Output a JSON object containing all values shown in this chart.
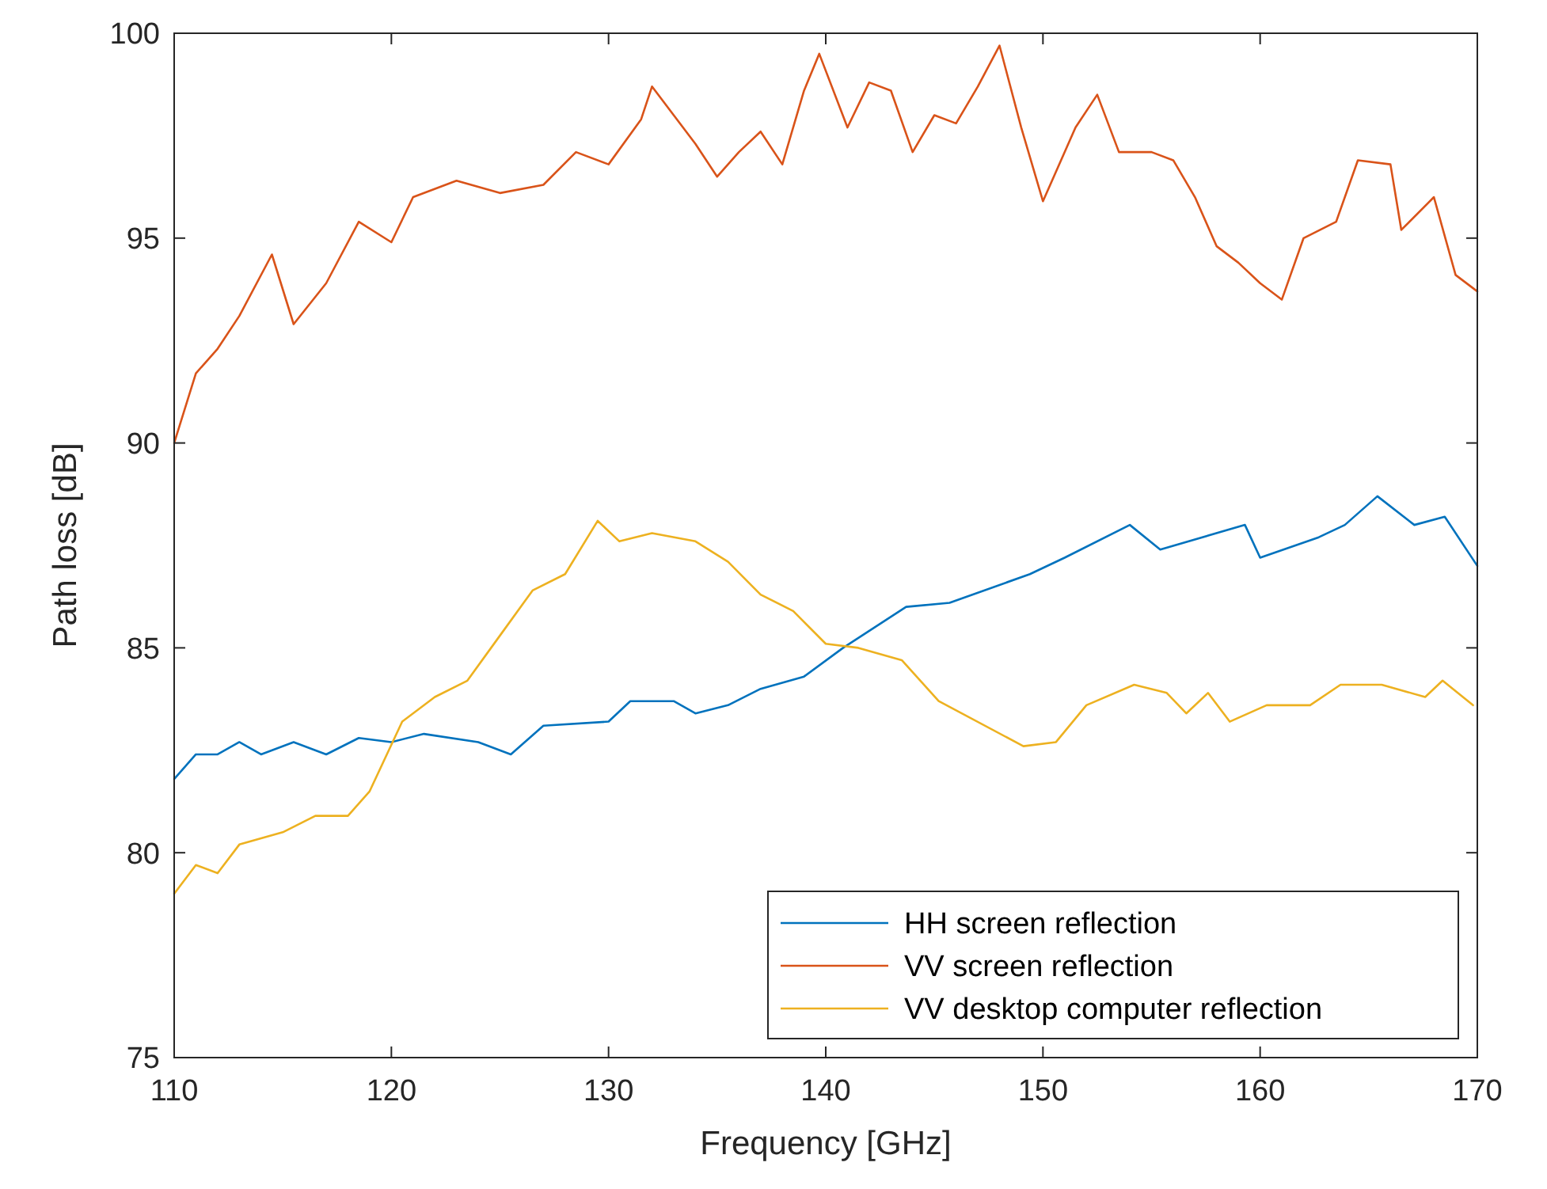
{
  "chart_data": {
    "type": "line",
    "xlabel": "Frequency [GHz]",
    "ylabel": "Path loss [dB]",
    "xlim": [
      110,
      170
    ],
    "ylim": [
      75,
      100
    ],
    "xticks": [
      110,
      120,
      130,
      140,
      150,
      160,
      170
    ],
    "yticks": [
      75,
      80,
      85,
      90,
      95,
      100
    ],
    "grid": false,
    "legend": "bottom right",
    "line_style": "solid",
    "marker": "none",
    "series": [
      {
        "name": "HH screen reflection",
        "color": "#0072bd",
        "x": [
          110,
          111,
          112,
          113,
          114,
          115.5,
          117,
          118.5,
          120,
          121.5,
          124,
          125.5,
          127,
          130,
          131,
          133,
          134,
          135.5,
          137,
          139,
          140.8,
          143.7,
          145.7,
          149.4,
          151,
          154,
          155.4,
          159.3,
          160,
          162.7,
          163.9,
          165.4,
          167.1,
          168.5,
          170
        ],
        "values": [
          81.8,
          82.4,
          82.4,
          82.7,
          82.4,
          82.7,
          82.4,
          82.8,
          82.7,
          82.9,
          82.7,
          82.4,
          83.1,
          83.2,
          83.7,
          83.7,
          83.4,
          83.6,
          84.0,
          84.3,
          85.0,
          86.0,
          86.1,
          86.8,
          87.2,
          88.0,
          87.4,
          88.0,
          87.2,
          87.7,
          88.0,
          88.7,
          88.0,
          88.2,
          87.0
        ]
      },
      {
        "name": "VV screen reflection",
        "color": "#d95319",
        "x": [
          110,
          111,
          112,
          113,
          114.5,
          115.5,
          117,
          118.5,
          120,
          121,
          123,
          125,
          127,
          128.5,
          130,
          131.5,
          132,
          133,
          134,
          135,
          136,
          137,
          138,
          139,
          139.7,
          141,
          142,
          143,
          144,
          145,
          146,
          147,
          148,
          149,
          150,
          151.5,
          152.5,
          153.5,
          155,
          156,
          157,
          158,
          159,
          160,
          161,
          162,
          163.5,
          164.5,
          166,
          166.5,
          168,
          169,
          170
        ],
        "values": [
          90.0,
          91.7,
          92.3,
          93.1,
          94.6,
          92.9,
          93.9,
          95.4,
          94.9,
          96.0,
          96.4,
          96.1,
          96.3,
          97.1,
          96.8,
          97.9,
          98.7,
          98.0,
          97.3,
          96.5,
          97.1,
          97.6,
          96.8,
          98.6,
          99.5,
          97.7,
          98.8,
          98.6,
          97.1,
          98.0,
          97.8,
          98.7,
          99.7,
          97.7,
          95.9,
          97.7,
          98.5,
          97.1,
          97.1,
          96.9,
          96.0,
          94.8,
          94.4,
          93.9,
          93.5,
          95.0,
          95.4,
          96.9,
          96.8,
          95.2,
          96.0,
          94.1,
          93.7
        ]
      },
      {
        "name": "VV desktop computer reflection",
        "color": "#edb120",
        "x": [
          110,
          111,
          112,
          113,
          115,
          116.5,
          118,
          119,
          120.5,
          122,
          123.5,
          125,
          126.5,
          128,
          129.5,
          130.5,
          132,
          134,
          135.5,
          137,
          138.5,
          140,
          141.5,
          143.5,
          145.2,
          149.1,
          150.6,
          152,
          154.2,
          155.7,
          156.6,
          157.6,
          158.6,
          160.3,
          162.3,
          163.7,
          165.6,
          167.6,
          168.4,
          169.8
        ],
        "values": [
          79.0,
          79.7,
          79.5,
          80.2,
          80.5,
          80.9,
          80.9,
          81.5,
          83.2,
          83.8,
          84.2,
          85.3,
          86.4,
          86.8,
          88.1,
          87.6,
          87.8,
          87.6,
          87.1,
          86.3,
          85.9,
          85.1,
          85.0,
          84.7,
          83.7,
          82.6,
          82.7,
          83.6,
          84.1,
          83.9,
          83.4,
          83.9,
          83.2,
          83.6,
          83.6,
          84.1,
          84.1,
          83.8,
          84.2,
          83.6
        ]
      }
    ]
  }
}
